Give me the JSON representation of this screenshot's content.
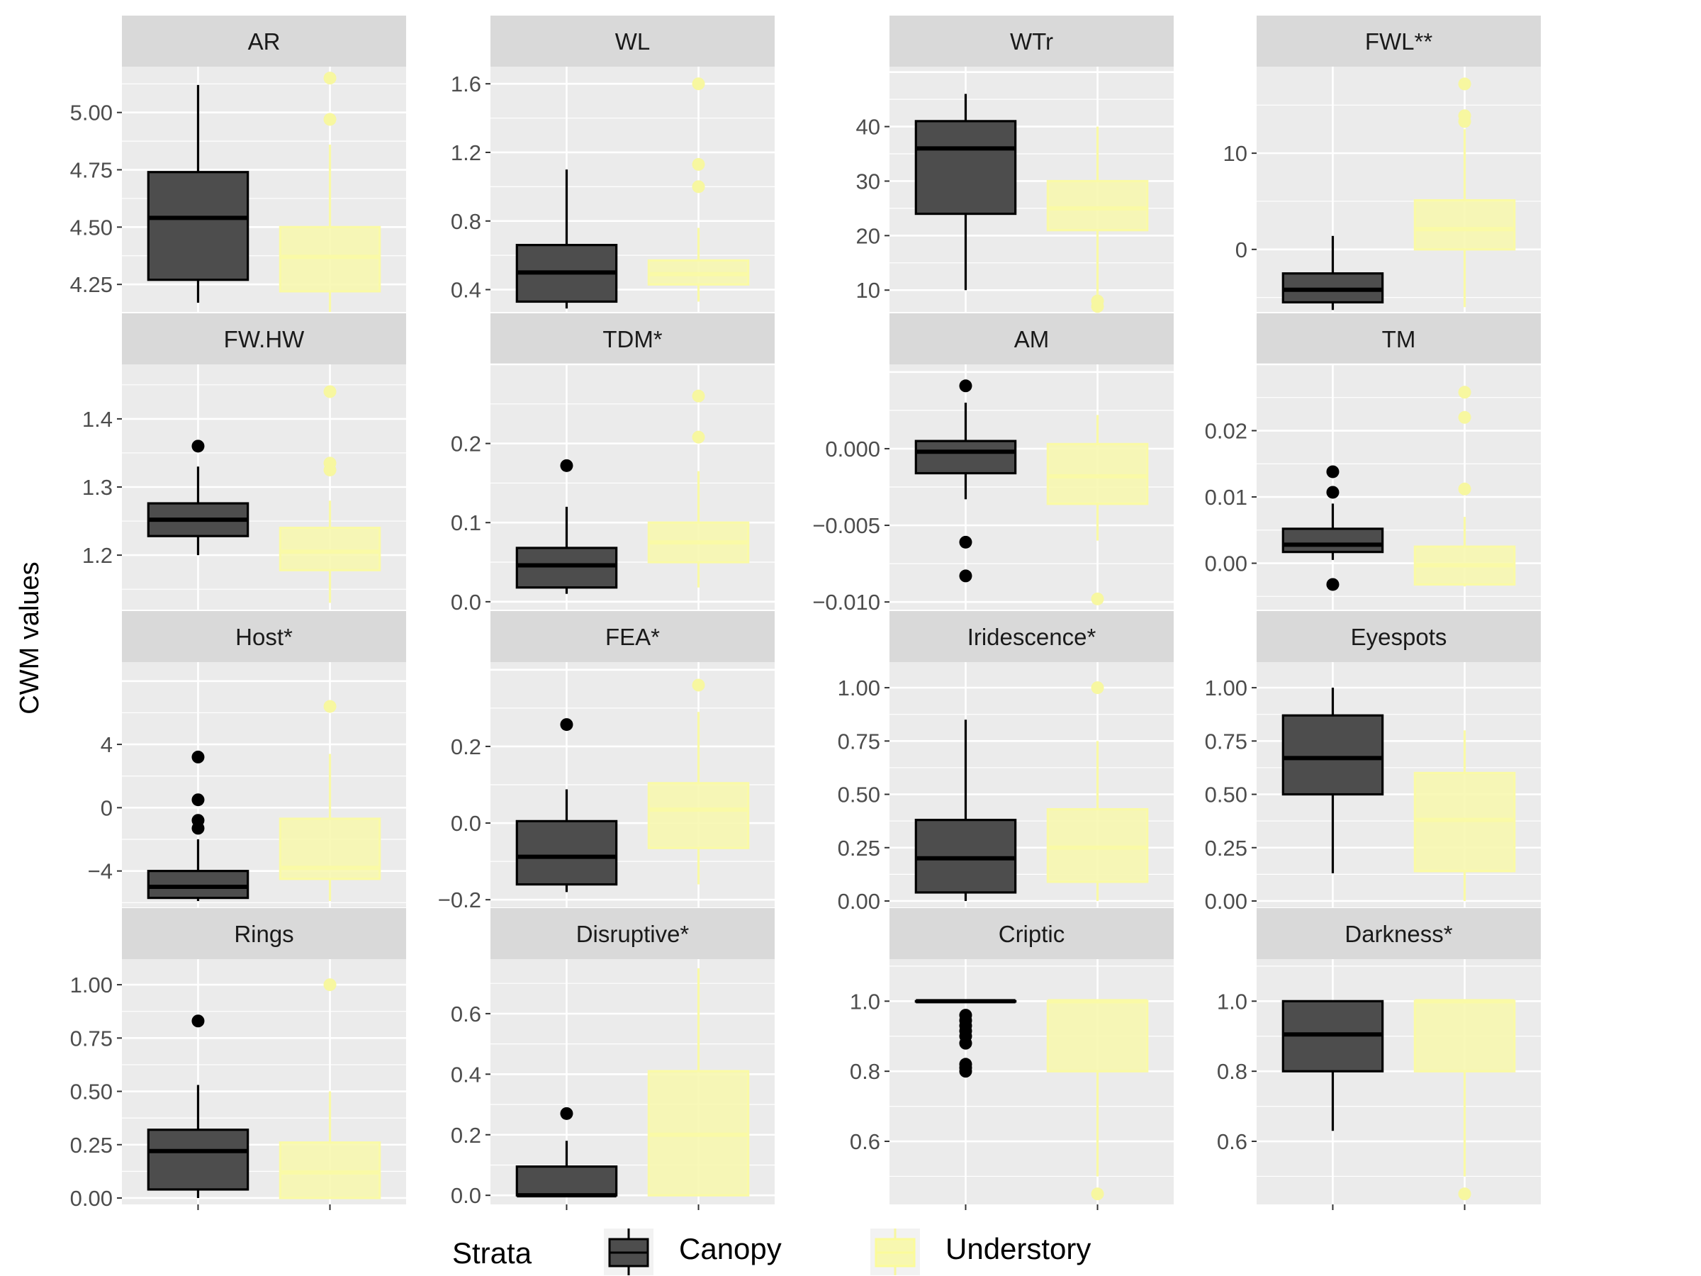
{
  "chart_data": {
    "type": "box",
    "ylabel": "CWM values",
    "legend": {
      "title": "Strata",
      "position": "bottom",
      "entries": [
        "Canopy",
        "Understory"
      ]
    },
    "colors": {
      "Canopy": "#4d4d4d",
      "Understory": "#f7f7b0",
      "panel": "#ebebeb",
      "strip": "#d9d9d9"
    },
    "panels": [
      {
        "title": "AR",
        "ylim": [
          4.13,
          5.2
        ],
        "ticks": [
          "4.25",
          "4.50",
          "4.75",
          "5.00"
        ],
        "canopy": {
          "min": 4.17,
          "q1": 4.27,
          "median": 4.54,
          "q3": 4.74,
          "max": 5.12,
          "outliers": []
        },
        "understory": {
          "min": 4.13,
          "q1": 4.22,
          "median": 4.37,
          "q3": 4.5,
          "max": 4.86,
          "outliers": [
            4.97,
            5.15
          ]
        }
      },
      {
        "title": "WL",
        "ylim": [
          0.27,
          1.7
        ],
        "ticks": [
          "0.4",
          "0.8",
          "1.2",
          "1.6"
        ],
        "canopy": {
          "min": 0.29,
          "q1": 0.33,
          "median": 0.5,
          "q3": 0.66,
          "max": 1.1,
          "outliers": []
        },
        "understory": {
          "min": 0.33,
          "q1": 0.43,
          "median": 0.49,
          "q3": 0.57,
          "max": 0.76,
          "outliers": [
            1.0,
            1.13,
            1.6
          ]
        }
      },
      {
        "title": "WTr",
        "ylim": [
          6,
          51
        ],
        "ticks": [
          "10",
          "20",
          "30",
          "40"
        ],
        "canopy": {
          "min": 10,
          "q1": 24,
          "median": 36,
          "q3": 41,
          "max": 46,
          "outliers": []
        },
        "understory": {
          "min": 9,
          "q1": 21,
          "median": 25,
          "q3": 30,
          "max": 40,
          "outliers": [
            7,
            8
          ]
        }
      },
      {
        "title": "FWL**",
        "ylim": [
          -6.5,
          19
        ],
        "ticks": [
          "0",
          "10"
        ],
        "canopy": {
          "min": -6.3,
          "q1": -5.5,
          "median": -4.2,
          "q3": -2.5,
          "max": 1.4,
          "outliers": []
        },
        "understory": {
          "min": -6.0,
          "q1": 0,
          "median": 2.1,
          "q3": 5.1,
          "max": 12.5,
          "outliers": [
            13.3,
            13.9,
            17.2
          ]
        }
      },
      {
        "title": "FW.HW",
        "ylim": [
          1.12,
          1.48
        ],
        "ticks": [
          "1.2",
          "1.3",
          "1.4"
        ],
        "canopy": {
          "min": 1.2,
          "q1": 1.228,
          "median": 1.252,
          "q3": 1.276,
          "max": 1.33,
          "outliers": [
            1.36
          ]
        },
        "understory": {
          "min": 1.13,
          "q1": 1.178,
          "median": 1.205,
          "q3": 1.24,
          "max": 1.28,
          "outliers": [
            1.325,
            1.335,
            1.44
          ]
        }
      },
      {
        "title": "TDM*",
        "ylim": [
          -0.01,
          0.3
        ],
        "ticks": [
          "0.0",
          "0.1",
          "0.2"
        ],
        "canopy": {
          "min": 0.01,
          "q1": 0.018,
          "median": 0.046,
          "q3": 0.068,
          "max": 0.12,
          "outliers": [
            0.172
          ]
        },
        "understory": {
          "min": 0.018,
          "q1": 0.05,
          "median": 0.075,
          "q3": 0.1,
          "max": 0.165,
          "outliers": [
            0.208,
            0.26
          ]
        }
      },
      {
        "title": "AM",
        "ylim": [
          -0.0105,
          0.0055
        ],
        "ticks": [
          "-0.010",
          "-0.005",
          "0.000"
        ],
        "canopy": {
          "min": -0.0033,
          "q1": -0.0016,
          "median": -0.0002,
          "q3": 0.0005,
          "max": 0.003,
          "outliers": [
            0.0041,
            -0.0061,
            -0.0083
          ]
        },
        "understory": {
          "min": -0.006,
          "q1": -0.0036,
          "median": -0.0018,
          "q3": 0.0003,
          "max": 0.0022,
          "outliers": [
            -0.0098
          ]
        }
      },
      {
        "title": "TM",
        "ylim": [
          -0.007,
          0.03
        ],
        "ticks": [
          "0.00",
          "0.01",
          "0.02"
        ],
        "canopy": {
          "min": 0.0005,
          "q1": 0.0017,
          "median": 0.0028,
          "q3": 0.0052,
          "max": 0.009,
          "outliers": [
            0.0107,
            0.0138,
            -0.0032
          ]
        },
        "understory": {
          "min": -0.0035,
          "q1": -0.0032,
          "median": -0.0003,
          "q3": 0.0025,
          "max": 0.007,
          "outliers": [
            0.0112,
            0.022,
            0.0258
          ]
        }
      },
      {
        "title": "Host*",
        "ylim": [
          -6.3,
          9.2
        ],
        "ticks": [
          "-4",
          "0",
          "4"
        ],
        "canopy": {
          "min": -5.9,
          "q1": -5.7,
          "median": -5.0,
          "q3": -4.0,
          "max": -2.0,
          "outliers": [
            3.2,
            0.5,
            -0.8,
            -1.3
          ]
        },
        "understory": {
          "min": -5.9,
          "q1": -4.5,
          "median": -3.8,
          "q3": -0.7,
          "max": 3.4,
          "outliers": [
            6.4
          ]
        }
      },
      {
        "title": "FEA*",
        "ylim": [
          -0.22,
          0.42
        ],
        "ticks": [
          "-0.2",
          "0.0",
          "0.2"
        ],
        "canopy": {
          "min": -0.18,
          "q1": -0.16,
          "median": -0.088,
          "q3": 0.005,
          "max": 0.088,
          "outliers": [
            0.257
          ]
        },
        "understory": {
          "min": -0.16,
          "q1": -0.065,
          "median": 0.035,
          "q3": 0.104,
          "max": 0.29,
          "outliers": [
            0.36
          ]
        }
      },
      {
        "title": "Iridescence*",
        "ylim": [
          -0.03,
          1.12
        ],
        "ticks": [
          "0.00",
          "0.25",
          "0.50",
          "0.75",
          "1.00"
        ],
        "canopy": {
          "min": 0.0,
          "q1": 0.04,
          "median": 0.2,
          "q3": 0.38,
          "max": 0.85,
          "outliers": []
        },
        "understory": {
          "min": 0.0,
          "q1": 0.09,
          "median": 0.25,
          "q3": 0.43,
          "max": 0.75,
          "outliers": [
            1.0
          ]
        }
      },
      {
        "title": "Eyespots",
        "ylim": [
          -0.03,
          1.12
        ],
        "ticks": [
          "0.00",
          "0.25",
          "0.50",
          "0.75",
          "1.00"
        ],
        "canopy": {
          "min": 0.13,
          "q1": 0.5,
          "median": 0.67,
          "q3": 0.87,
          "max": 1.0,
          "outliers": []
        },
        "understory": {
          "min": 0.0,
          "q1": 0.14,
          "median": 0.38,
          "q3": 0.6,
          "max": 0.8,
          "outliers": []
        }
      },
      {
        "title": "Rings",
        "ylim": [
          -0.03,
          1.12
        ],
        "ticks": [
          "0.00",
          "0.25",
          "0.50",
          "0.75",
          "1.00"
        ],
        "canopy": {
          "min": 0.0,
          "q1": 0.04,
          "median": 0.22,
          "q3": 0.32,
          "max": 0.53,
          "outliers": [
            0.83
          ]
        },
        "understory": {
          "min": 0.0,
          "q1": 0.0,
          "median": 0.12,
          "q3": 0.26,
          "max": 0.5,
          "outliers": [
            1.0
          ]
        }
      },
      {
        "title": "Disruptive*",
        "ylim": [
          -0.03,
          0.78
        ],
        "ticks": [
          "0.0",
          "0.2",
          "0.4",
          "0.6"
        ],
        "canopy": {
          "min": 0.0,
          "q1": 0.0,
          "median": 0.0,
          "q3": 0.095,
          "max": 0.18,
          "outliers": [
            0.27
          ]
        },
        "understory": {
          "min": 0.0,
          "q1": 0.0,
          "median": 0.2,
          "q3": 0.41,
          "max": 0.75,
          "outliers": []
        }
      },
      {
        "title": "Criptic",
        "ylim": [
          0.42,
          1.12
        ],
        "ticks": [
          "0.6",
          "0.8",
          "1.0"
        ],
        "canopy": {
          "min": 1.0,
          "q1": 1.0,
          "median": 1.0,
          "q3": 1.0,
          "max": 1.0,
          "outliers": [
            0.96,
            0.945,
            0.93,
            0.915,
            0.9,
            0.88,
            0.82,
            0.81,
            0.8
          ]
        },
        "understory": {
          "min": 0.5,
          "q1": 0.8,
          "median": 1.0,
          "q3": 1.0,
          "max": 1.0,
          "outliers": [
            0.45
          ]
        }
      },
      {
        "title": "Darkness*",
        "ylim": [
          0.42,
          1.12
        ],
        "ticks": [
          "0.6",
          "0.8",
          "1.0"
        ],
        "canopy": {
          "min": 0.63,
          "q1": 0.8,
          "median": 0.905,
          "q3": 1.0,
          "max": 1.0,
          "outliers": []
        },
        "understory": {
          "min": 0.5,
          "q1": 0.8,
          "median": 1.0,
          "q3": 1.0,
          "max": 1.0,
          "outliers": [
            0.45
          ]
        }
      }
    ]
  }
}
